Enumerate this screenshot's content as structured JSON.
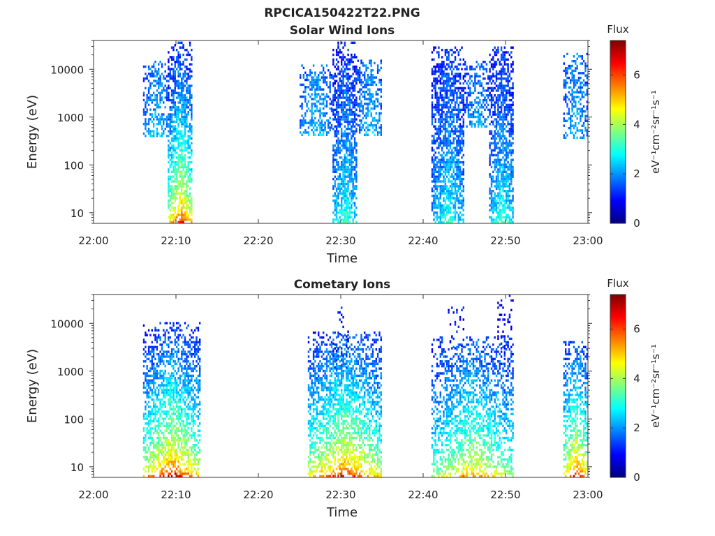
{
  "figure": {
    "title": "RPCICA150422T22.PNG"
  },
  "colormap": {
    "name": "jet",
    "stops": [
      "#00007f",
      "#0000ff",
      "#007fff",
      "#00ffff",
      "#7fff7f",
      "#ffff00",
      "#ff7f00",
      "#ff0000",
      "#7f0000"
    ]
  },
  "chart_data": [
    {
      "type": "heatmap",
      "title": "Solar Wind Ions",
      "xlabel": "Time",
      "ylabel": "Energy (eV)",
      "y_scale": "log",
      "xlim": [
        "22:00",
        "23:00"
      ],
      "ylim": [
        6,
        40000
      ],
      "x_ticks": [
        "22:00",
        "22:10",
        "22:20",
        "22:30",
        "22:40",
        "22:50",
        "23:00"
      ],
      "y_ticks": [
        "10",
        "100",
        "1000",
        "10000"
      ],
      "colorbar": {
        "label": "Flux",
        "unit_label": "eV⁻¹cm⁻²sr⁻¹s⁻¹",
        "ticks": [
          "0",
          "2",
          "4",
          "6"
        ],
        "range": [
          0,
          7.4
        ]
      },
      "bursts": [
        {
          "t_start": "22:06",
          "t_end": "22:09",
          "e_min": 380,
          "e_max": 15000,
          "flux_low_e": 2.5,
          "flux_high_e": 1.8,
          "density": 0.55
        },
        {
          "t_start": "22:09",
          "t_end": "22:12",
          "e_min": 6,
          "e_max": 35000,
          "flux_low_e": 6.5,
          "flux_high_e": 1.2,
          "density": 0.75
        },
        {
          "t_start": "22:25",
          "t_end": "22:29",
          "e_min": 400,
          "e_max": 12000,
          "flux_low_e": 2.5,
          "flux_high_e": 1.8,
          "density": 0.55
        },
        {
          "t_start": "22:29",
          "t_end": "22:32",
          "e_min": 6,
          "e_max": 35000,
          "flux_low_e": 3.5,
          "flux_high_e": 1.2,
          "density": 0.75
        },
        {
          "t_start": "22:32",
          "t_end": "22:35",
          "e_min": 400,
          "e_max": 15000,
          "flux_low_e": 2.5,
          "flux_high_e": 1.8,
          "density": 0.55
        },
        {
          "t_start": "22:41",
          "t_end": "22:45",
          "e_min": 6,
          "e_max": 30000,
          "flux_low_e": 3.2,
          "flux_high_e": 1.3,
          "density": 0.75
        },
        {
          "t_start": "22:45",
          "t_end": "22:48",
          "e_min": 600,
          "e_max": 15000,
          "flux_low_e": 2.4,
          "flux_high_e": 1.6,
          "density": 0.5
        },
        {
          "t_start": "22:48",
          "t_end": "22:51",
          "e_min": 6,
          "e_max": 30000,
          "flux_low_e": 3.5,
          "flux_high_e": 1.2,
          "density": 0.75
        },
        {
          "t_start": "22:57",
          "t_end": "23:00",
          "e_min": 350,
          "e_max": 20000,
          "flux_low_e": 2.4,
          "flux_high_e": 1.8,
          "density": 0.5
        }
      ]
    },
    {
      "type": "heatmap",
      "title": "Cometary Ions",
      "xlabel": "Time",
      "ylabel": "Energy (eV)",
      "y_scale": "log",
      "xlim": [
        "22:00",
        "23:00"
      ],
      "ylim": [
        6,
        40000
      ],
      "x_ticks": [
        "22:00",
        "22:10",
        "22:20",
        "22:30",
        "22:40",
        "22:50",
        "23:00"
      ],
      "y_ticks": [
        "10",
        "100",
        "1000",
        "10000"
      ],
      "colorbar": {
        "label": "Flux",
        "unit_label": "eV⁻¹cm⁻²sr⁻¹s⁻¹",
        "ticks": [
          "0",
          "2",
          "4",
          "6"
        ],
        "range": [
          0,
          7.4
        ]
      },
      "bursts": [
        {
          "t_start": "22:06",
          "t_end": "22:13",
          "e_min": 6,
          "e_max": 10000,
          "flux_low_e": 6.8,
          "flux_high_e": 1.3,
          "density": 0.65
        },
        {
          "t_start": "22:26",
          "t_end": "22:35",
          "e_min": 6,
          "e_max": 6000,
          "flux_low_e": 6.5,
          "flux_high_e": 1.5,
          "density": 0.65
        },
        {
          "t_start": "22:29",
          "t_end": "22:31",
          "e_min": 1000,
          "e_max": 28000,
          "flux_low_e": 1.4,
          "flux_high_e": 1.0,
          "density": 0.12
        },
        {
          "t_start": "22:41",
          "t_end": "22:51",
          "e_min": 6,
          "e_max": 5000,
          "flux_low_e": 5.5,
          "flux_high_e": 1.4,
          "density": 0.55
        },
        {
          "t_start": "22:43",
          "t_end": "22:45",
          "e_min": 2000,
          "e_max": 25000,
          "flux_low_e": 1.3,
          "flux_high_e": 1.0,
          "density": 0.15
        },
        {
          "t_start": "22:49",
          "t_end": "22:51",
          "e_min": 2000,
          "e_max": 38000,
          "flux_low_e": 1.3,
          "flux_high_e": 1.0,
          "density": 0.15
        },
        {
          "t_start": "22:57",
          "t_end": "23:00",
          "e_min": 6,
          "e_max": 4000,
          "flux_low_e": 6.8,
          "flux_high_e": 1.5,
          "density": 0.6
        }
      ]
    }
  ]
}
